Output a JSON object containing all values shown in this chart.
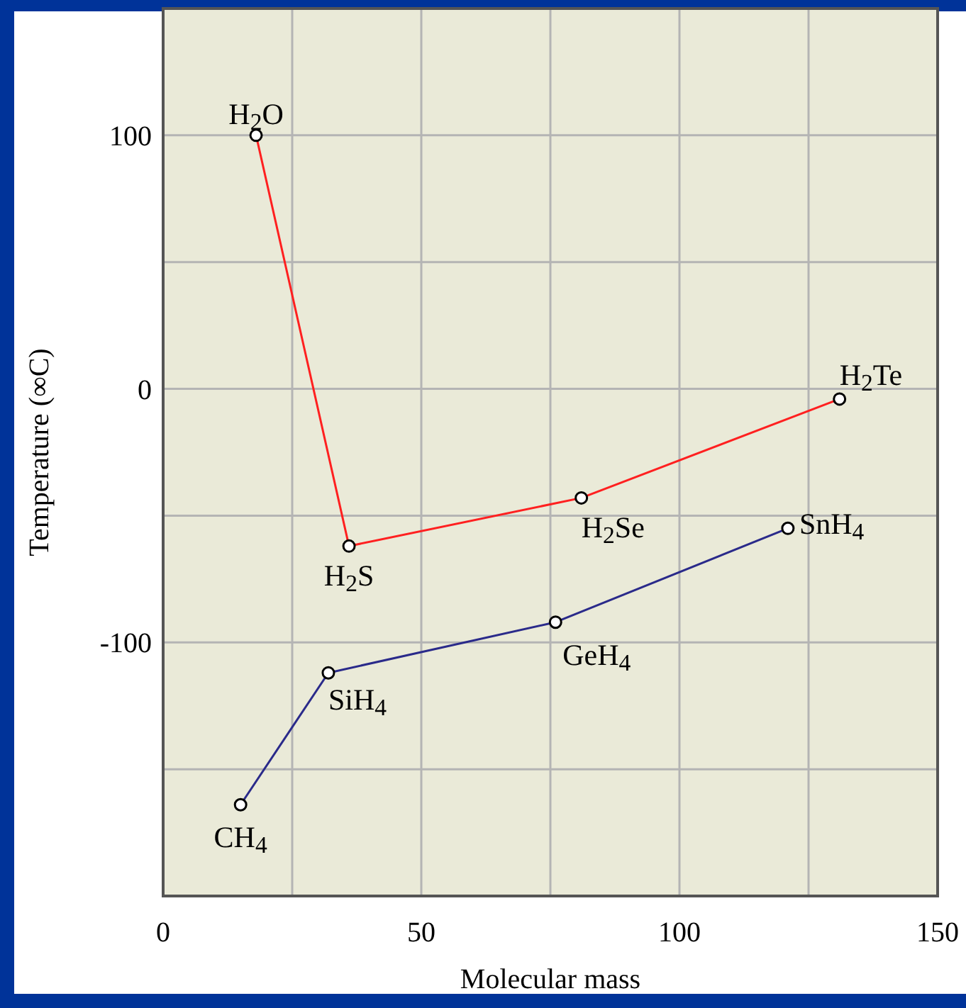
{
  "chart_data": {
    "type": "line",
    "xlabel": "Molecular mass",
    "ylabel": "Temperature (∞C)",
    "xlim": [
      0,
      150
    ],
    "xticks": [
      0,
      {
        "value": 25,
        "label": null
      },
      50,
      {
        "value": 75,
        "label": null
      },
      100,
      {
        "value": 125,
        "label": null
      },
      150
    ],
    "ylim": [
      -200,
      150
    ],
    "yticks": [
      {
        "value": -200,
        "label": null
      },
      {
        "value": -150,
        "label": null
      },
      -100,
      {
        "value": -50,
        "label": null
      },
      0,
      {
        "value": 50,
        "label": null
      },
      100,
      {
        "value": 150,
        "label": null
      }
    ],
    "grid": true,
    "marker": "circle",
    "series": [
      {
        "color": "#ff2020",
        "x": [
          18,
          36,
          81,
          131
        ],
        "values": [
          100,
          -62,
          -43,
          -4
        ]
      },
      {
        "color": "#2a2a8a",
        "x": [
          15,
          32,
          76,
          121
        ],
        "values": [
          -164,
          -112,
          -92,
          -55
        ]
      }
    ],
    "annotations": [
      {
        "text": "H$_{2}$O",
        "x": 18,
        "y": 100
      },
      {
        "text": "H$_{2}$S",
        "x": 36,
        "y": -62
      },
      {
        "text": "H$_{2}$Se",
        "x": 81,
        "y": -43
      },
      {
        "text": "H$_{2}$Te",
        "x": 131,
        "y": -4
      },
      {
        "text": "CH$_{4}$",
        "x": 15,
        "y": -164
      },
      {
        "text": "SiH$_{4}$",
        "x": 32,
        "y": -112
      },
      {
        "text": "GeH$_{4}$",
        "x": 76,
        "y": -92
      },
      {
        "text": "SnH$_{4}$",
        "x": 121,
        "y": -55
      }
    ]
  }
}
